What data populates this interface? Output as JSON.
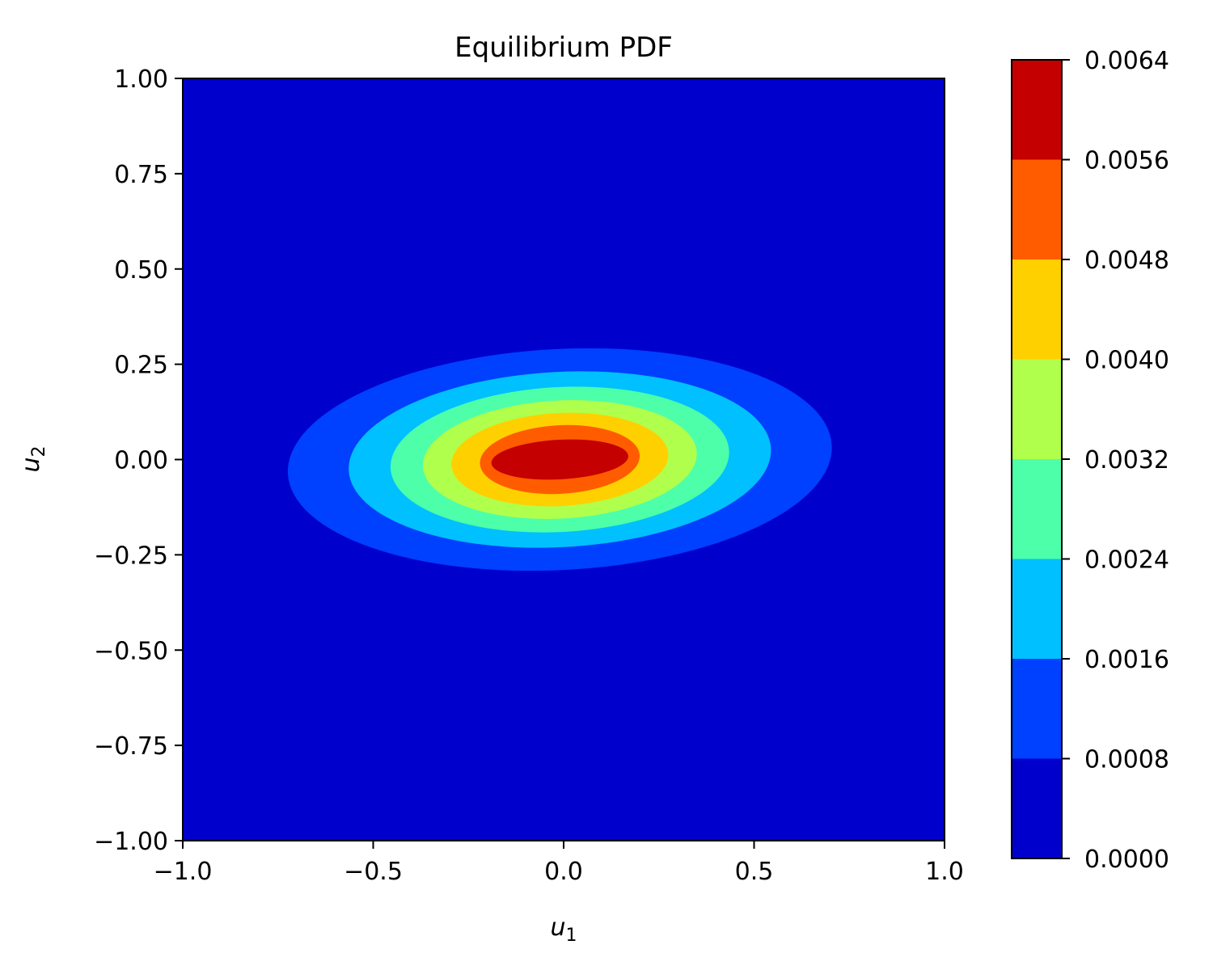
{
  "chart_data": {
    "type": "contour",
    "title": "Equilibrium PDF",
    "xlabel": "u",
    "xlabel_sub": "1",
    "ylabel": "u",
    "ylabel_sub": "2",
    "xlim": [
      -1.0,
      1.0
    ],
    "ylim": [
      -1.0,
      1.0
    ],
    "xticks": [
      -1.0,
      -0.5,
      0.0,
      0.5,
      1.0
    ],
    "xtick_labels": [
      "−1.0",
      "−0.5",
      "0.0",
      "0.5",
      "1.0"
    ],
    "yticks": [
      1.0,
      0.75,
      0.5,
      0.25,
      0.0,
      -0.25,
      -0.5,
      -0.75,
      -1.0
    ],
    "ytick_labels": [
      "1.00",
      "0.75",
      "0.50",
      "0.25",
      "0.00",
      "−0.25",
      "−0.50",
      "−0.75",
      "−1.00"
    ],
    "grid": false,
    "colormap": "jet",
    "colorbar": {
      "levels": [
        0.0,
        0.0008,
        0.0016,
        0.0024,
        0.0032,
        0.004,
        0.0048,
        0.0056,
        0.0064
      ],
      "tick_labels": [
        "0.0000",
        "0.0008",
        "0.0016",
        "0.0024",
        "0.0032",
        "0.0040",
        "0.0048",
        "0.0056",
        "0.0064"
      ],
      "band_colors": [
        "#0000cc",
        "#0040ff",
        "#00c0ff",
        "#4dffa9",
        "#b0ff4c",
        "#ffd000",
        "#ff5c00",
        "#c40000"
      ]
    },
    "contour_regions": [
      {
        "level_min": 0.0008,
        "color": "#0040ff",
        "center": [
          -0.01,
          0.0
        ],
        "semi_axis_u1": 0.715,
        "semi_axis_u2": 0.29,
        "rotation_deg": 3
      },
      {
        "level_min": 0.0016,
        "color": "#00c0ff",
        "center": [
          -0.01,
          0.0
        ],
        "semi_axis_u1": 0.555,
        "semi_axis_u2": 0.23,
        "rotation_deg": 3
      },
      {
        "level_min": 0.0024,
        "color": "#4dffa9",
        "center": [
          -0.01,
          0.0
        ],
        "semi_axis_u1": 0.445,
        "semi_axis_u2": 0.19,
        "rotation_deg": 3
      },
      {
        "level_min": 0.0032,
        "color": "#b0ff4c",
        "center": [
          -0.01,
          0.0
        ],
        "semi_axis_u1": 0.36,
        "semi_axis_u2": 0.155,
        "rotation_deg": 3
      },
      {
        "level_min": 0.004,
        "color": "#ffd000",
        "center": [
          -0.01,
          0.0
        ],
        "semi_axis_u1": 0.285,
        "semi_axis_u2": 0.122,
        "rotation_deg": 3
      },
      {
        "level_min": 0.0048,
        "color": "#ff5c00",
        "center": [
          -0.01,
          0.0
        ],
        "semi_axis_u1": 0.21,
        "semi_axis_u2": 0.09,
        "rotation_deg": 3
      },
      {
        "level_min": 0.0056,
        "color": "#c40000",
        "center": [
          -0.01,
          0.0
        ],
        "semi_axis_u1": 0.18,
        "semi_axis_u2": 0.052,
        "rotation_deg": 3
      }
    ]
  }
}
